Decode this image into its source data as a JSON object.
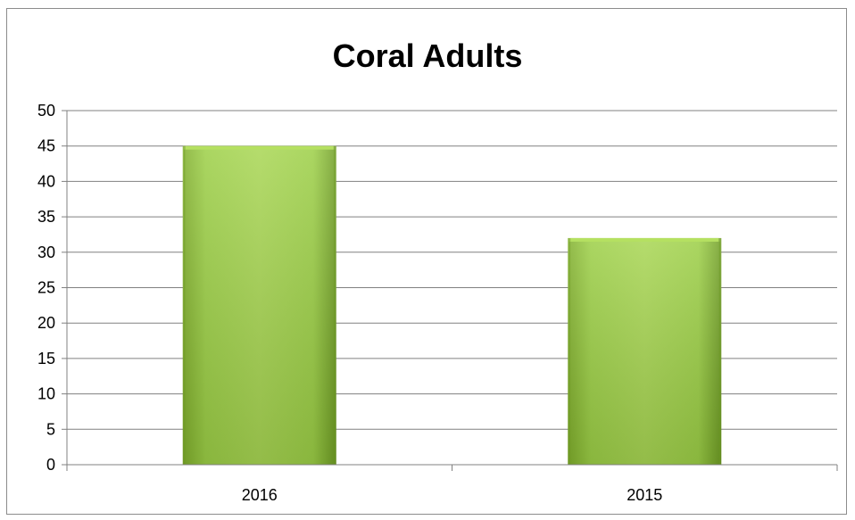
{
  "chart_data": {
    "type": "bar",
    "title": "Coral Adults",
    "categories": [
      "2016",
      "2015"
    ],
    "values": [
      45,
      32
    ],
    "ylim": [
      0,
      50
    ],
    "yticks": [
      0,
      5,
      10,
      15,
      20,
      25,
      30,
      35,
      40,
      45,
      50
    ],
    "xlabel": "",
    "ylabel": "",
    "grid": true,
    "legend": "none",
    "colors": {
      "bar_light": "#b5e061",
      "bar_mid": "#93c83c",
      "bar_dark": "#6c9a22",
      "gridline": "#808080"
    }
  }
}
